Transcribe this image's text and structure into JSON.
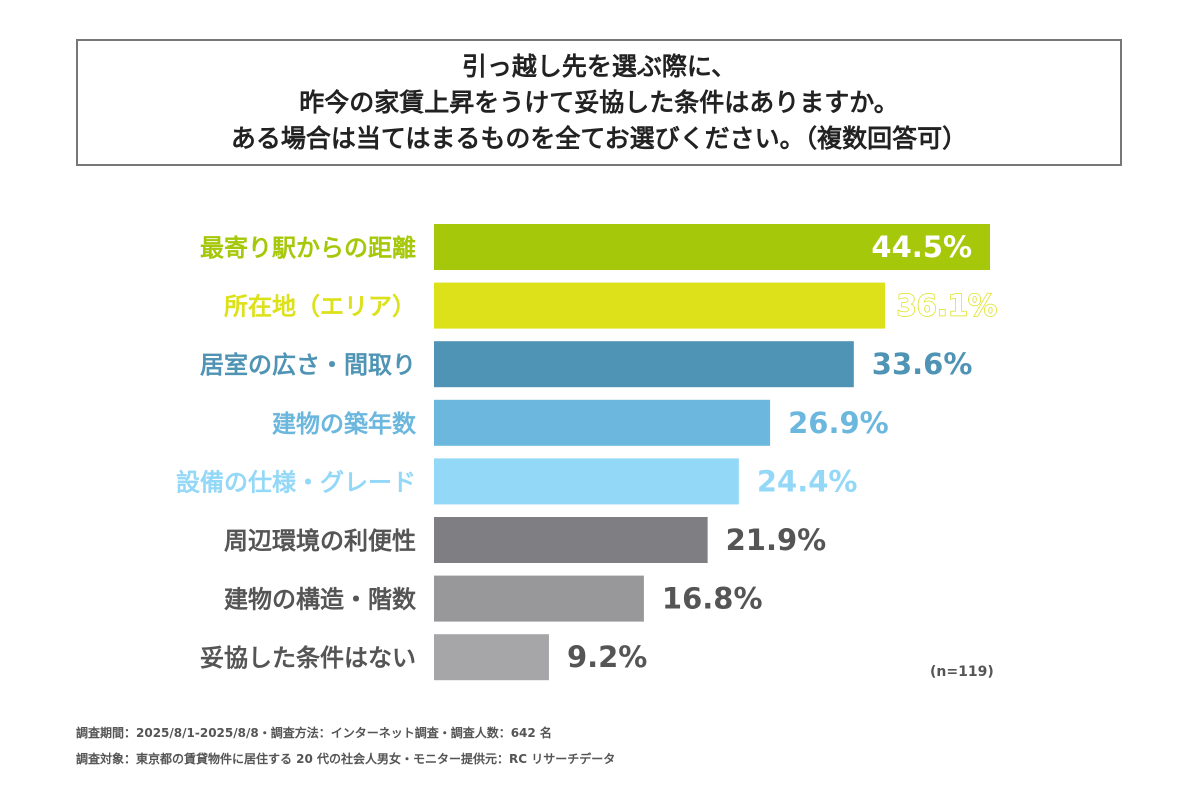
{
  "chart_data": {
    "type": "bar",
    "orientation": "horizontal",
    "title": [
      "引っ越し先を選ぶ際に、",
      "昨今の家賃上昇をうけて妥協した条件はありますか。",
      "ある場合は当てはまるものを全てお選びください。（複数回答可）"
    ],
    "categories": [
      "最寄り駅からの距離",
      "所在地（エリア）",
      "居室の広さ・間取り",
      "建物の築年数",
      "設備の仕様・グレード",
      "周辺環境の利便性",
      "建物の構造・階数",
      "妥協した条件はない"
    ],
    "values": [
      44.5,
      36.1,
      33.6,
      26.9,
      24.4,
      21.9,
      16.8,
      9.2
    ],
    "value_labels": [
      "44.5%",
      "36.1%",
      "33.6%",
      "26.9%",
      "24.4%",
      "21.9%",
      "16.8%",
      "9.2%"
    ],
    "unit": "%",
    "colors": [
      "#a5c80a",
      "#dce11a",
      "#4f94b4",
      "#6cb7dd",
      "#94d8f8",
      "#7f7e82",
      "#98989b",
      "#a6a6a9"
    ],
    "label_colors": [
      "#a5c80a",
      "#dce11a",
      "#4f94b4",
      "#6cb7dd",
      "#94d8f8",
      "#555555",
      "#555555",
      "#555555"
    ],
    "xlim": [
      0,
      44.5
    ],
    "grid": false,
    "legend": "none",
    "annotation": "(n=119)"
  },
  "footer": {
    "line1": "調査期間：2025/8/1-2025/8/8・調査方法：インターネット調査・調査人数：642 名",
    "line2": "調査対象：東京都の賃貸物件に居住する 20 代の社会人男女・モニター提供元：RC リサーチデータ"
  }
}
